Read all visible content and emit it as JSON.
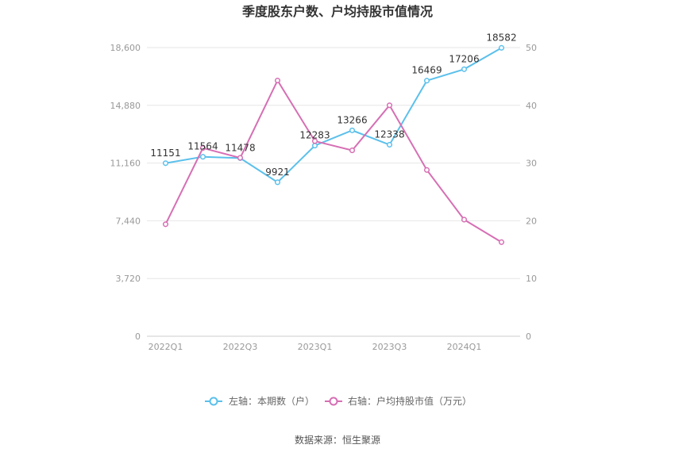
{
  "chart_data": {
    "type": "line",
    "title": "季度股东户数、户均持股市值情况",
    "categories": [
      "2022Q1",
      "2022Q2",
      "2022Q3",
      "2022Q4",
      "2023Q1",
      "2023Q2",
      "2023Q3",
      "2023Q4",
      "2024Q1",
      "2024Q2"
    ],
    "x_tick_labels": [
      "2022Q1",
      "2022Q3",
      "2023Q1",
      "2023Q3",
      "2024Q1"
    ],
    "left_axis": {
      "ylim": [
        0,
        18600
      ],
      "ticks": [
        "0",
        "3,720",
        "7,440",
        "11,160",
        "14,880",
        "18,600"
      ]
    },
    "right_axis": {
      "ylim": [
        0,
        50
      ],
      "ticks": [
        "0",
        "10",
        "20",
        "30",
        "40",
        "50"
      ]
    },
    "series": [
      {
        "name": "左轴：本期数（户）",
        "axis": "left",
        "color": "#5bc0eb",
        "values": [
          11151,
          11564,
          11478,
          9921,
          12283,
          13266,
          12338,
          16469,
          17206,
          18582
        ],
        "labels": [
          "11151",
          "11564",
          "11478",
          "9921",
          "12283",
          "13266",
          "12338",
          "16469",
          "17206",
          "18582"
        ]
      },
      {
        "name": "右轴：户均持股市值（万元）",
        "axis": "right",
        "color": "#d66fb4",
        "values": [
          19.4,
          32.6,
          30.9,
          44.3,
          33.8,
          32.2,
          40.0,
          28.8,
          20.2,
          16.3
        ]
      }
    ],
    "grid": true,
    "legend_position": "bottom"
  },
  "source": "数据来源：恒生聚源"
}
